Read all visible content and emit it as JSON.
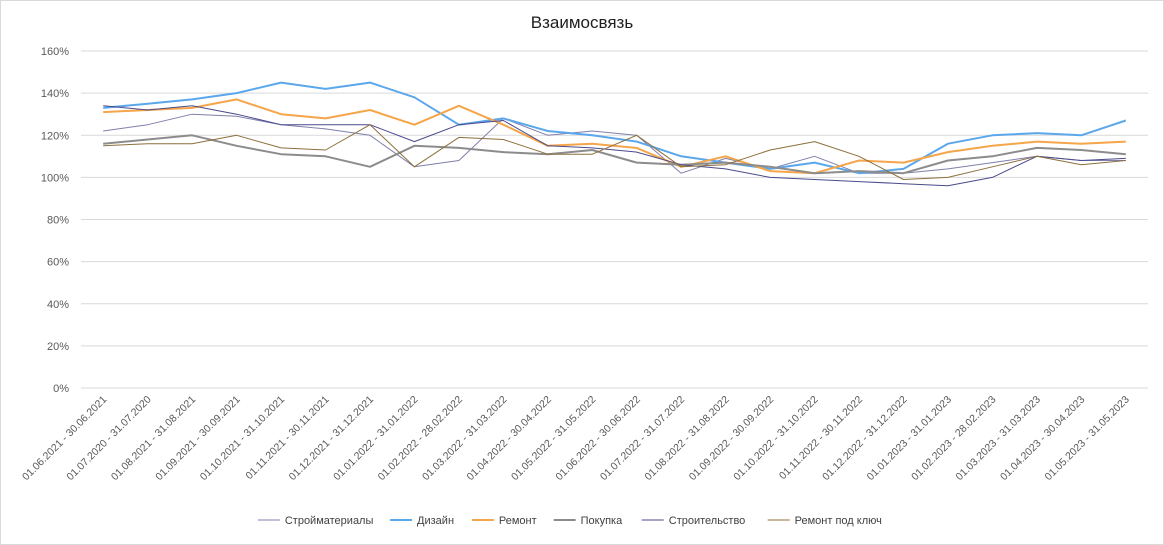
{
  "chart_data": {
    "type": "line",
    "title": "Взаимосвязь",
    "xlabel": "",
    "ylabel": "",
    "ylim": [
      0,
      160
    ],
    "yticks": [
      "0%",
      "20%",
      "40%",
      "60%",
      "80%",
      "100%",
      "120%",
      "140%",
      "160%"
    ],
    "grid": true,
    "legend_position": "bottom",
    "categories": [
      "01.06.2021 - 30.06.2021",
      "01.07.2020 - 31.07.2020",
      "01.08.2021 - 31.08.2021",
      "01.09.2021 - 30.09.2021",
      "01.10.2021 - 31.10.2021",
      "01.11.2021 - 30.11.2021",
      "01.12.2021 - 31.12.2021",
      "01.01.2022 - 31.01.2022",
      "01.02.2022 - 28.02.2022",
      "01.03.2022 - 31.03.2022",
      "01.04.2022 - 30.04.2022",
      "01.05.2022 - 31.05.2022",
      "01.06.2022 - 30.06.2022",
      "01.07.2022 - 31.07.2022",
      "01.08.2022 - 31.08.2022",
      "01.09.2022 - 30.09.2022",
      "01.10.2022 - 31.10.2022",
      "01.11.2022 - 30.11.2022",
      "01.12.2022 - 31.12.2022",
      "01.01.2023 - 31.01.2023",
      "01.02.2023 - 28.02.2023",
      "01.03.2023 - 31.03.2023",
      "01.04.2023 - 30.04.2023",
      "01.05.2023 - 31.05.2023"
    ],
    "series": [
      {
        "name": "Стройматериалы",
        "color": "#7f7fab",
        "width": 1,
        "values": [
          122,
          125,
          130,
          129,
          125,
          123,
          120,
          105,
          108,
          128,
          120,
          122,
          120,
          102,
          109,
          104,
          110,
          102,
          102,
          104,
          107,
          110,
          108,
          108
        ]
      },
      {
        "name": "Дизайн",
        "color": "#5ba7ec",
        "width": 2,
        "values": [
          133,
          135,
          137,
          140,
          145,
          142,
          145,
          138,
          125,
          128,
          122,
          120,
          117,
          110,
          107,
          104,
          107,
          102,
          104,
          116,
          120,
          121,
          120,
          127
        ]
      },
      {
        "name": "Ремонт",
        "color": "#f5a54a",
        "width": 2,
        "values": [
          131,
          132,
          133,
          137,
          130,
          128,
          132,
          125,
          134,
          125,
          115,
          116,
          114,
          105,
          110,
          103,
          102,
          108,
          107,
          112,
          115,
          117,
          116,
          117
        ]
      },
      {
        "name": "Покупка",
        "color": "#8c8c8c",
        "width": 2,
        "values": [
          116,
          118,
          120,
          115,
          111,
          110,
          105,
          115,
          114,
          112,
          111,
          113,
          107,
          106,
          107,
          105,
          102,
          103,
          102,
          108,
          110,
          114,
          113,
          111
        ]
      },
      {
        "name": "Строительство",
        "color": "#4a4a8c",
        "width": 1,
        "values": [
          134,
          132,
          134,
          130,
          125,
          125,
          125,
          117,
          125,
          127,
          115,
          114,
          112,
          106,
          104,
          100,
          99,
          98,
          97,
          96,
          100,
          110,
          108,
          109
        ]
      },
      {
        "name": "Ремонт под ключ",
        "color": "#8c6f3c",
        "width": 1,
        "values": [
          115,
          116,
          116,
          120,
          114,
          113,
          125,
          105,
          119,
          118,
          111,
          111,
          120,
          105,
          106,
          113,
          117,
          110,
          99,
          100,
          105,
          110,
          106,
          108
        ]
      }
    ]
  }
}
